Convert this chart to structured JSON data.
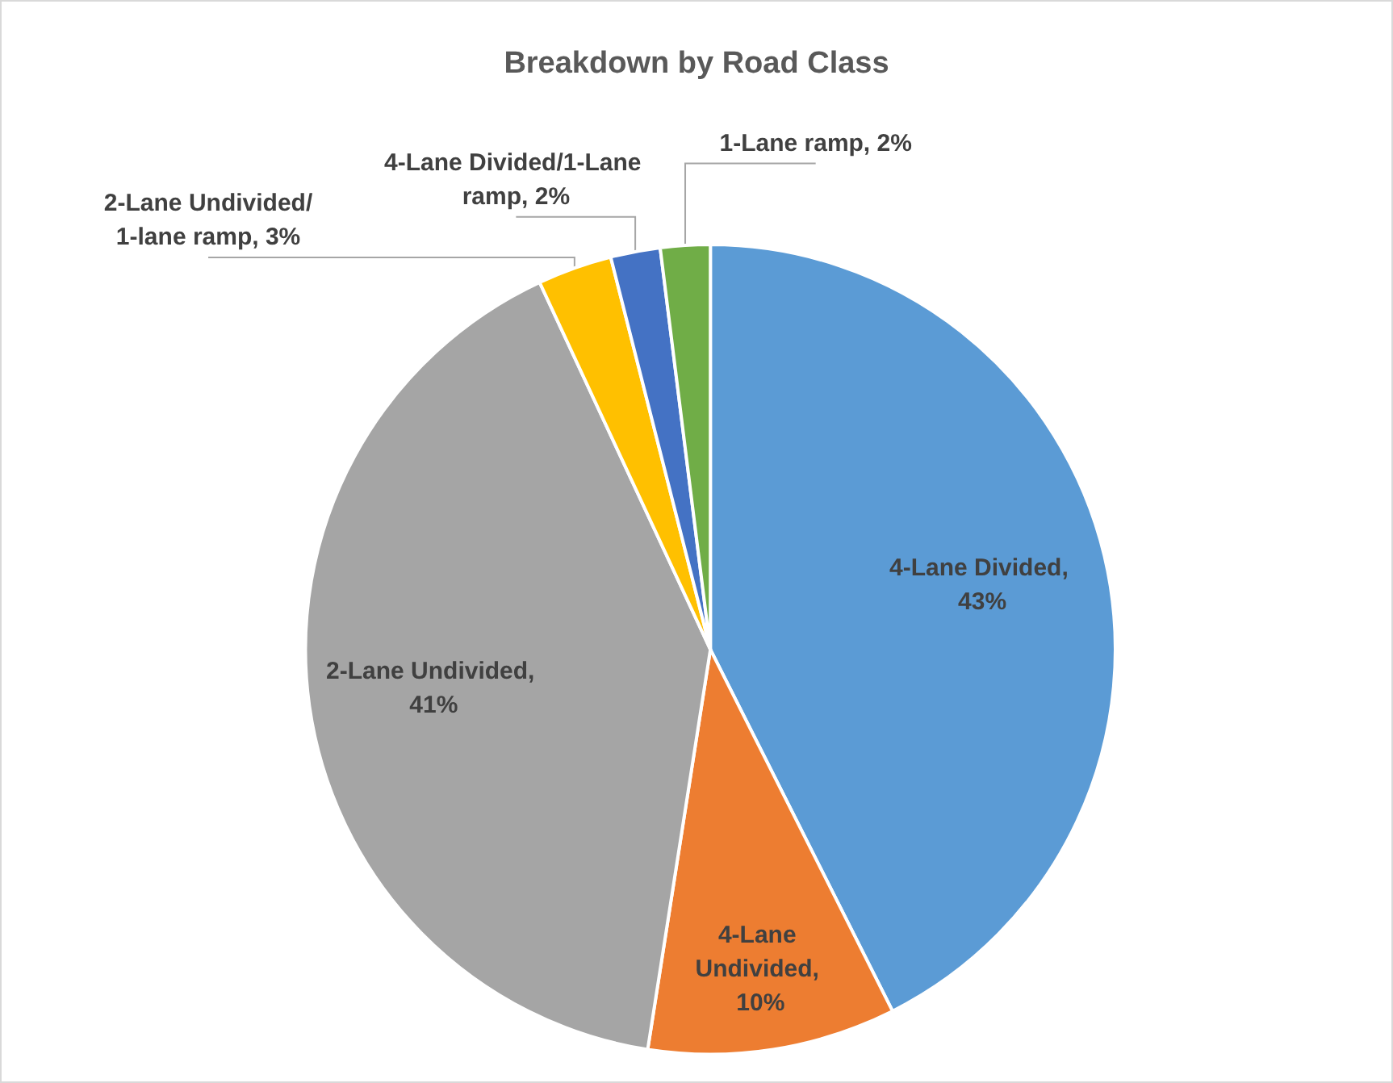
{
  "chart_data": {
    "type": "pie",
    "title": "Breakdown by Road Class",
    "categories": [
      "4-Lane Divided",
      "4-Lane Undivided",
      "2-Lane Undivided",
      "2-Lane Undivided/1-lane ramp",
      "4-Lane Divided/1-Lane ramp",
      "1-Lane ramp"
    ],
    "values": [
      43,
      10,
      41,
      3,
      2,
      2
    ],
    "value_labels": [
      ", 43%",
      ", 10%",
      ", 41%",
      ", 3%",
      ", 2%",
      ", 2%"
    ],
    "colors": [
      "#5b9bd5",
      "#ed7d31",
      "#a5a5a5",
      "#ffc000",
      "#4472c4",
      "#70ad47"
    ],
    "legend": false
  }
}
